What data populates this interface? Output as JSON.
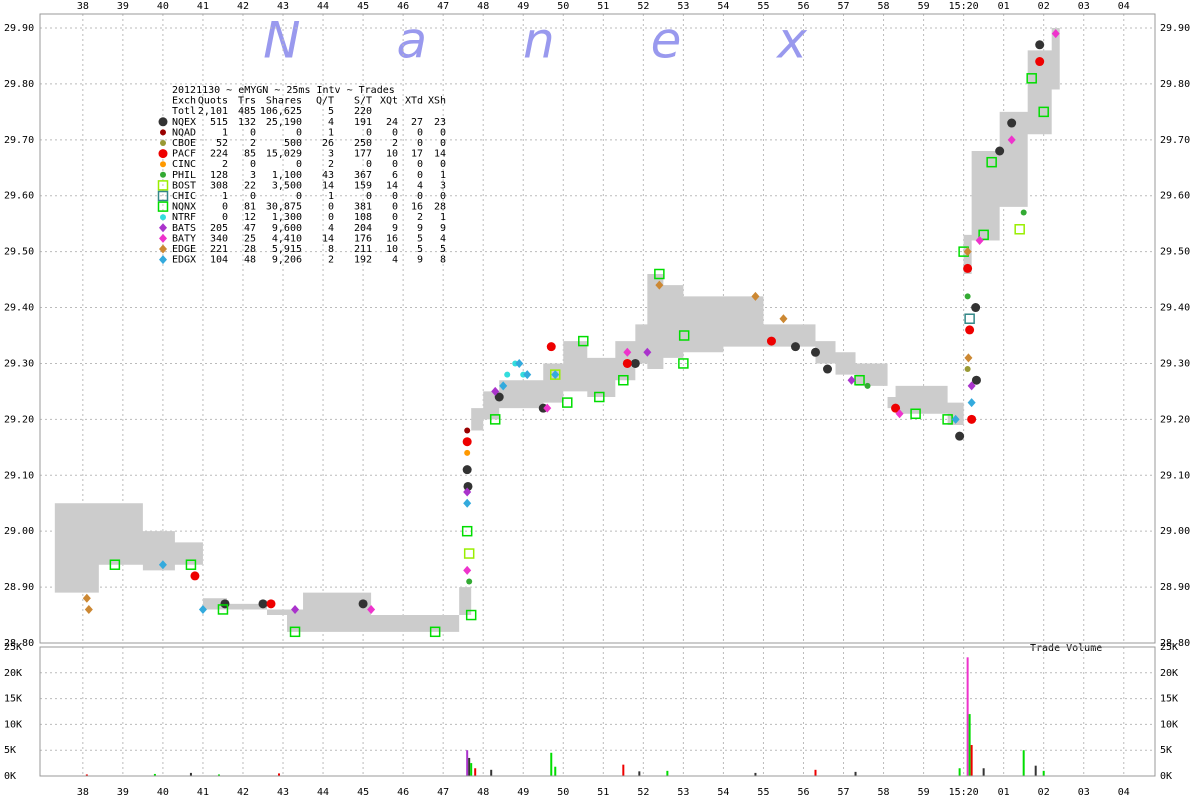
{
  "chart_data": [
    {
      "type": "scatter",
      "watermark": "N a n e x",
      "legend_table": {
        "title": "20121130 ~ eMYGN ~ 25ms Intv ~ Trades",
        "columns": [
          "Exch",
          "Quots",
          "Trs",
          "Shares",
          "Q/T",
          "S/T",
          "XQt",
          "XTd",
          "XSh"
        ],
        "total": {
          "name": "Totl",
          "stats": [
            "2,101",
            "485",
            "106,625",
            "5",
            "220",
            "",
            "",
            ""
          ]
        }
      },
      "xlim": [
        36.93,
        64.78
      ],
      "xticks": [
        38,
        39,
        40,
        41,
        42,
        43,
        44,
        45,
        46,
        47,
        48,
        49,
        50,
        51,
        52,
        53,
        54,
        55,
        56,
        57,
        58,
        59,
        {
          "value": 60,
          "label": "15:20"
        },
        {
          "value": 61,
          "label": "01"
        },
        {
          "value": 62,
          "label": "02"
        },
        {
          "value": 63,
          "label": "03"
        },
        {
          "value": 64,
          "label": "04"
        }
      ],
      "ylim": [
        28.8,
        29.9
      ],
      "yticks": [
        {
          "value": 28.8,
          "label": "28.80"
        },
        {
          "value": 28.9,
          "label": "28.90"
        },
        {
          "value": 29.0,
          "label": "29.00"
        },
        {
          "value": 29.1,
          "label": "29.10"
        },
        {
          "value": 29.2,
          "label": "29.20"
        },
        {
          "value": 29.3,
          "label": "29.30"
        },
        {
          "value": 29.4,
          "label": "29.40"
        },
        {
          "value": 29.5,
          "label": "29.50"
        },
        {
          "value": 29.6,
          "label": "29.60"
        },
        {
          "value": 29.7,
          "label": "29.70"
        },
        {
          "value": 29.8,
          "label": "29.80"
        },
        {
          "value": 29.9,
          "label": "29.90"
        }
      ],
      "grid": true,
      "quote_band": {
        "color": "#cccccc",
        "x": [
          37.3,
          38.4,
          39.5,
          40.3,
          41.0,
          41.6,
          42.6,
          43.1,
          43.5,
          45.2,
          46.0,
          47.4,
          47.7,
          48.0,
          48.4,
          49.5,
          50.0,
          50.6,
          51.3,
          51.8,
          52.1,
          52.5,
          53.0,
          54.0,
          55.0,
          56.3,
          56.8,
          57.3,
          58.1,
          58.3,
          59.6,
          60.0,
          60.2,
          60.9,
          61.6,
          62.2,
          62.4
        ],
        "low": [
          28.89,
          28.94,
          28.93,
          28.94,
          28.86,
          28.86,
          28.85,
          28.82,
          28.82,
          28.82,
          28.82,
          28.85,
          29.18,
          29.2,
          29.22,
          29.23,
          29.25,
          29.24,
          29.27,
          29.3,
          29.29,
          29.31,
          29.32,
          29.33,
          29.33,
          29.3,
          29.28,
          29.26,
          29.22,
          29.21,
          29.19,
          29.46,
          29.52,
          29.58,
          29.71,
          29.79,
          29.79
        ],
        "high": [
          29.05,
          29.05,
          29.0,
          28.98,
          28.88,
          28.87,
          28.86,
          28.86,
          28.89,
          28.85,
          28.85,
          28.9,
          29.22,
          29.25,
          29.27,
          29.3,
          29.34,
          29.31,
          29.34,
          29.37,
          29.46,
          29.44,
          29.42,
          29.42,
          29.37,
          29.34,
          29.32,
          29.3,
          29.24,
          29.26,
          29.23,
          29.53,
          29.68,
          29.75,
          29.86,
          29.9,
          29.9
        ]
      },
      "series": [
        {
          "name": "NQEX",
          "color": "#333333",
          "marker": "circle",
          "stats": [
            "515",
            "132",
            "25,190",
            "4",
            "191",
            "24",
            "27",
            "23"
          ],
          "x": [
            41.55,
            42.5,
            45.0,
            47.6,
            47.62,
            48.4,
            49.5,
            51.8,
            55.8,
            56.3,
            56.6,
            59.9,
            60.3,
            60.32,
            60.9,
            61.2,
            61.9
          ],
          "values": [
            28.87,
            28.87,
            28.87,
            29.11,
            29.08,
            29.24,
            29.22,
            29.3,
            29.33,
            29.32,
            29.29,
            29.17,
            29.4,
            29.27,
            29.68,
            29.73,
            29.87
          ]
        },
        {
          "name": "NQAD",
          "color": "#990000",
          "marker": "dot",
          "stats": [
            "1",
            "0",
            "0",
            "1",
            "0",
            "0",
            "0",
            "0"
          ],
          "x": [
            47.6
          ],
          "values": [
            29.18
          ]
        },
        {
          "name": "CBOE",
          "color": "#999933",
          "marker": "dot",
          "stats": [
            "52",
            "2",
            "500",
            "26",
            "250",
            "2",
            "0",
            "0"
          ],
          "x": [
            60.1
          ],
          "values": [
            29.29
          ]
        },
        {
          "name": "PACF",
          "color": "#ee0000",
          "marker": "circle",
          "stats": [
            "224",
            "85",
            "15,029",
            "3",
            "177",
            "10",
            "17",
            "14"
          ],
          "x": [
            40.8,
            42.7,
            47.6,
            49.7,
            51.6,
            55.2,
            58.3,
            60.1,
            60.15,
            60.2,
            61.9
          ],
          "values": [
            28.92,
            28.87,
            29.16,
            29.33,
            29.3,
            29.34,
            29.22,
            29.47,
            29.36,
            29.2,
            29.84
          ]
        },
        {
          "name": "CINC",
          "color": "#ff9900",
          "marker": "dot",
          "stats": [
            "2",
            "0",
            "0",
            "2",
            "0",
            "0",
            "0",
            "0"
          ],
          "x": [
            47.6
          ],
          "values": [
            29.14
          ]
        },
        {
          "name": "PHIL",
          "color": "#33aa33",
          "marker": "dot",
          "stats": [
            "128",
            "3",
            "1,100",
            "43",
            "367",
            "6",
            "0",
            "1"
          ],
          "x": [
            47.65,
            57.6,
            60.1,
            61.5
          ],
          "values": [
            28.91,
            29.26,
            29.42,
            29.57
          ]
        },
        {
          "name": "BOST",
          "color": "#99ee00",
          "marker": "square",
          "stats": [
            "308",
            "22",
            "3,500",
            "14",
            "159",
            "14",
            "4",
            "3"
          ],
          "x": [
            47.65,
            49.8,
            61.4
          ],
          "values": [
            28.96,
            29.28,
            29.54
          ]
        },
        {
          "name": "CHIC",
          "color": "#338888",
          "marker": "square",
          "stats": [
            "1",
            "0",
            "0",
            "1",
            "0",
            "0",
            "0",
            "0"
          ],
          "x": [
            60.15
          ],
          "values": [
            29.38
          ]
        },
        {
          "name": "NQNX",
          "color": "#00dd00",
          "marker": "square",
          "stats": [
            "0",
            "81",
            "30,875",
            "0",
            "381",
            "0",
            "16",
            "28"
          ],
          "x": [
            38.8,
            40.7,
            41.5,
            43.3,
            46.8,
            47.6,
            47.7,
            48.3,
            50.1,
            50.5,
            50.9,
            51.5,
            52.4,
            53.0,
            53.02,
            57.4,
            58.8,
            59.6,
            60.0,
            60.5,
            60.7,
            61.7,
            62.0
          ],
          "values": [
            28.94,
            28.94,
            28.86,
            28.82,
            28.82,
            29.0,
            28.85,
            29.2,
            29.23,
            29.34,
            29.24,
            29.27,
            29.46,
            29.3,
            29.35,
            29.27,
            29.21,
            29.2,
            29.5,
            29.53,
            29.66,
            29.81,
            29.75
          ]
        },
        {
          "name": "NTRF",
          "color": "#33dddd",
          "marker": "dot",
          "stats": [
            "0",
            "12",
            "1,300",
            "0",
            "108",
            "0",
            "2",
            "1"
          ],
          "x": [
            48.6,
            48.8,
            49.0
          ],
          "values": [
            29.28,
            29.3,
            29.28
          ]
        },
        {
          "name": "BATS",
          "color": "#aa33cc",
          "marker": "diamond",
          "stats": [
            "205",
            "47",
            "9,600",
            "4",
            "204",
            "9",
            "9",
            "9"
          ],
          "x": [
            43.3,
            47.6,
            48.3,
            52.1,
            57.2,
            60.2
          ],
          "values": [
            28.86,
            29.07,
            29.25,
            29.32,
            29.27,
            29.26
          ]
        },
        {
          "name": "BATY",
          "color": "#ee33cc",
          "marker": "diamond",
          "stats": [
            "340",
            "25",
            "4,410",
            "14",
            "176",
            "16",
            "5",
            "4"
          ],
          "x": [
            45.2,
            47.6,
            49.6,
            51.6,
            58.4,
            60.4,
            61.2,
            62.3
          ],
          "values": [
            28.86,
            28.93,
            29.22,
            29.32,
            29.21,
            29.52,
            29.7,
            29.89
          ]
        },
        {
          "name": "EDGE",
          "color": "#cc8833",
          "marker": "diamond",
          "stats": [
            "221",
            "28",
            "5,915",
            "8",
            "211",
            "10",
            "5",
            "5"
          ],
          "x": [
            38.1,
            38.15,
            52.4,
            54.8,
            55.5,
            60.1,
            60.12
          ],
          "values": [
            28.88,
            28.86,
            29.44,
            29.42,
            29.38,
            29.5,
            29.31
          ]
        },
        {
          "name": "EDGX",
          "color": "#33aadd",
          "marker": "diamond",
          "stats": [
            "104",
            "48",
            "9,206",
            "2",
            "192",
            "4",
            "9",
            "8"
          ],
          "x": [
            40.0,
            41.0,
            47.6,
            48.5,
            48.9,
            49.1,
            49.8,
            59.8,
            60.2
          ],
          "values": [
            28.94,
            28.86,
            29.05,
            29.26,
            29.3,
            29.28,
            29.28,
            29.2,
            29.23
          ]
        }
      ]
    },
    {
      "type": "volume",
      "label": "Trade Volume",
      "ylim": [
        0,
        25000
      ],
      "yticks": [
        {
          "value": 0,
          "label": "0K"
        },
        {
          "value": 5000,
          "label": "5K"
        },
        {
          "value": 10000,
          "label": "10K"
        },
        {
          "value": 15000,
          "label": "15K"
        },
        {
          "value": 20000,
          "label": "20K"
        },
        {
          "value": 25000,
          "label": "25K"
        }
      ],
      "x": [
        38.1,
        39.8,
        40.7,
        41.4,
        42.9,
        47.6,
        47.65,
        47.7,
        47.8,
        48.2,
        49.7,
        49.8,
        51.5,
        51.9,
        52.6,
        54.8,
        56.3,
        57.3,
        59.9,
        60.1,
        60.15,
        60.2,
        60.5,
        61.5,
        61.8,
        62.0
      ],
      "values": [
        300,
        400,
        600,
        300,
        500,
        5000,
        3500,
        2500,
        1500,
        1200,
        4500,
        1800,
        2200,
        900,
        1000,
        600,
        1200,
        800,
        1500,
        23000,
        12000,
        6000,
        1500,
        5000,
        2000,
        1000
      ],
      "colors": [
        "#ee0000",
        "#00dd00",
        "#333333",
        "#00dd00",
        "#ee0000",
        "#aa33cc",
        "#333333",
        "#00dd00",
        "#ee0000",
        "#333333",
        "#00dd00",
        "#00dd00",
        "#ee0000",
        "#333333",
        "#00dd00",
        "#333333",
        "#ee0000",
        "#333333",
        "#00dd00",
        "#ee33cc",
        "#00dd00",
        "#ee0000",
        "#333333",
        "#00dd00",
        "#333333",
        "#00dd00"
      ]
    }
  ]
}
